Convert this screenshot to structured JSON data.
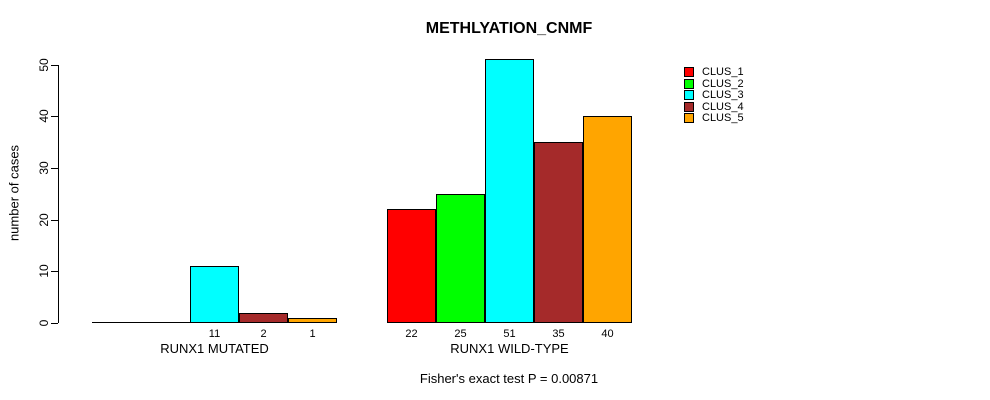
{
  "chart_data": {
    "type": "bar",
    "title": "METHLYATION_CNMF",
    "ylabel": "number of cases",
    "xlabel": "",
    "ylim": [
      0,
      50
    ],
    "yticks": [
      "0",
      "10",
      "20",
      "30",
      "40",
      "50"
    ],
    "grid": false,
    "legend_position": "right",
    "series": [
      "CLUS_1",
      "CLUS_2",
      "CLUS_3",
      "CLUS_4",
      "CLUS_5"
    ],
    "colors": [
      "#FF0000",
      "#00FF00",
      "#00FFFF",
      "#A52A2A",
      "#FFA500"
    ],
    "groups": [
      {
        "label": "RUNX1 MUTATED",
        "values": [
          0,
          0,
          11,
          2,
          1
        ],
        "bar_labels": [
          "",
          "",
          "11",
          "2",
          "1"
        ]
      },
      {
        "label": "RUNX1 WILD-TYPE",
        "values": [
          22,
          25,
          51,
          35,
          40
        ],
        "bar_labels": [
          "22",
          "25",
          "51",
          "35",
          "40"
        ]
      }
    ],
    "annotation": "Fisher's exact test P = 0.00871"
  }
}
